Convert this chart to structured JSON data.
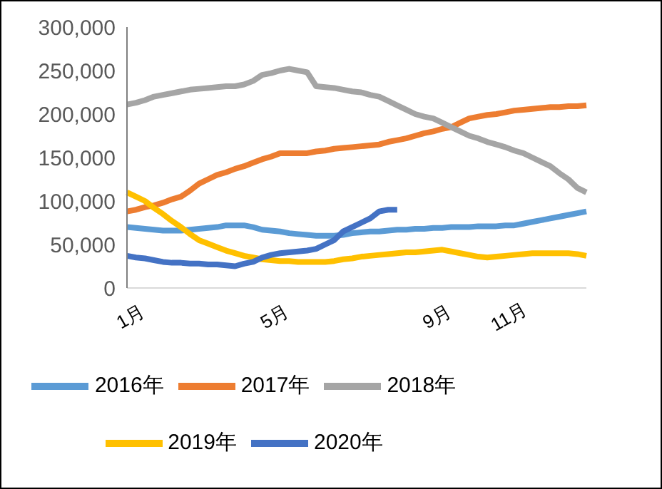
{
  "chart_data": {
    "type": "line",
    "categories": [
      "1月",
      null,
      null,
      null,
      null,
      null,
      null,
      null,
      null,
      null,
      null,
      null,
      null,
      null,
      null,
      null,
      "5月",
      null,
      null,
      null,
      null,
      null,
      null,
      null,
      null,
      null,
      null,
      null,
      null,
      null,
      null,
      null,
      null,
      null,
      "9月",
      null,
      null,
      null,
      null,
      null,
      null,
      null,
      "11月",
      null,
      null,
      null,
      null,
      null,
      null,
      null,
      null,
      null
    ],
    "series": [
      {
        "name": "2016年",
        "color": "#5b9bd5",
        "values": [
          70000,
          69000,
          68000,
          67000,
          66000,
          66000,
          66000,
          67000,
          68000,
          69000,
          70000,
          72000,
          72000,
          72000,
          70000,
          67000,
          66000,
          65000,
          63000,
          62000,
          61000,
          60000,
          60000,
          60000,
          61000,
          63000,
          64000,
          65000,
          65000,
          66000,
          67000,
          67000,
          68000,
          68000,
          69000,
          69000,
          70000,
          70000,
          70000,
          71000,
          71000,
          71000,
          72000,
          72000,
          74000,
          76000,
          78000,
          80000,
          82000,
          84000,
          86000,
          88000
        ]
      },
      {
        "name": "2017年",
        "color": "#ed7d31",
        "values": [
          88000,
          90000,
          93000,
          95000,
          98000,
          102000,
          105000,
          112000,
          120000,
          125000,
          130000,
          133000,
          137000,
          140000,
          144000,
          148000,
          151000,
          155000,
          155000,
          155000,
          155000,
          157000,
          158000,
          160000,
          161000,
          162000,
          163000,
          164000,
          165000,
          168000,
          170000,
          172000,
          175000,
          178000,
          180000,
          183000,
          185000,
          190000,
          195000,
          197000,
          199000,
          200000,
          202000,
          204000,
          205000,
          206000,
          207000,
          208000,
          208000,
          209000,
          209000,
          210000
        ]
      },
      {
        "name": "2018年",
        "color": "#a5a5a5",
        "values": [
          211000,
          213000,
          216000,
          220000,
          222000,
          224000,
          226000,
          228000,
          229000,
          230000,
          231000,
          232000,
          232000,
          234000,
          238000,
          245000,
          247000,
          250000,
          252000,
          250000,
          248000,
          232000,
          231000,
          230000,
          228000,
          226000,
          225000,
          222000,
          220000,
          215000,
          210000,
          205000,
          200000,
          197000,
          195000,
          190000,
          185000,
          180000,
          175000,
          172000,
          168000,
          165000,
          162000,
          158000,
          155000,
          150000,
          145000,
          140000,
          132000,
          125000,
          115000,
          110000
        ]
      },
      {
        "name": "2019年",
        "color": "#ffc000",
        "values": [
          110000,
          105000,
          100000,
          92000,
          85000,
          77000,
          70000,
          62000,
          55000,
          51000,
          47000,
          43000,
          40000,
          37000,
          35000,
          33000,
          32000,
          31000,
          31000,
          30000,
          30000,
          30000,
          30000,
          31000,
          33000,
          34000,
          36000,
          37000,
          38000,
          39000,
          40000,
          41000,
          41000,
          42000,
          43000,
          44000,
          42000,
          40000,
          38000,
          36000,
          35000,
          36000,
          37000,
          38000,
          39000,
          40000,
          40000,
          40000,
          40000,
          40000,
          39000,
          37000
        ]
      },
      {
        "name": "2020年",
        "color": "#4472c4",
        "values": [
          37000,
          35000,
          34000,
          32000,
          30000,
          29000,
          29000,
          28000,
          28000,
          27000,
          27000,
          26000,
          25000,
          28000,
          30000,
          35000,
          38000,
          40000,
          41000,
          42000,
          43000,
          45000,
          50000,
          55000,
          65000,
          70000,
          75000,
          80000,
          88000,
          90000,
          90000,
          null,
          null,
          null,
          null,
          null,
          null,
          null,
          null,
          null,
          null,
          null,
          null,
          null,
          null,
          null,
          null,
          null,
          null,
          null,
          null,
          null
        ]
      }
    ],
    "ylim": [
      0,
      300000
    ],
    "yticks": [
      0,
      {
        "value": 50000,
        "label": "50,000"
      },
      {
        "value": 100000,
        "label": "100,000"
      },
      {
        "value": 150000,
        "label": "150,000"
      },
      {
        "value": 200000,
        "label": "200,000"
      },
      {
        "value": 250000,
        "label": "250,000"
      },
      {
        "value": 300000,
        "label": "300,000"
      }
    ],
    "legend": "bottom",
    "marker": "none",
    "line_style": "solid"
  }
}
